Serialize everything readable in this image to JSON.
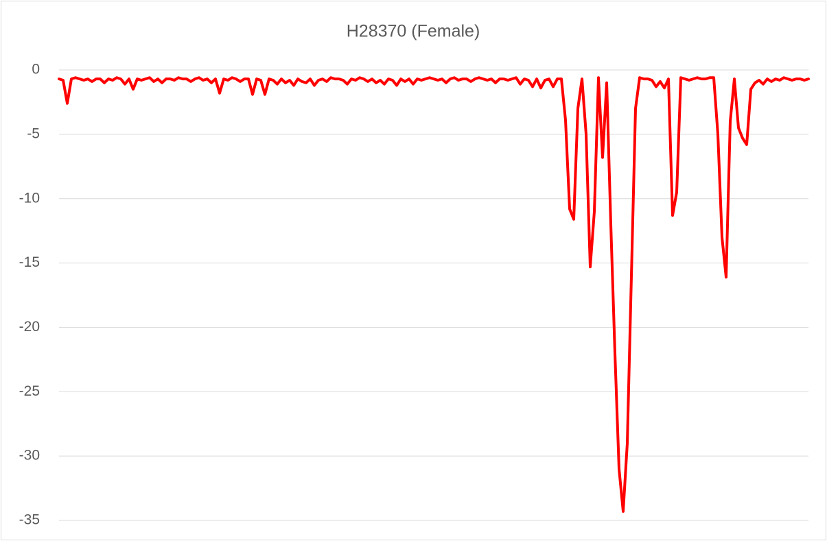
{
  "chart_data": {
    "type": "line",
    "title": "H28370 (Female)",
    "series": [
      {
        "color": "#ff0000",
        "values": [
          -0.7,
          -0.8,
          -2.6,
          -0.7,
          -0.6,
          -0.7,
          -0.8,
          -0.7,
          -0.9,
          -0.7,
          -0.7,
          -1.0,
          -0.7,
          -0.8,
          -0.6,
          -0.7,
          -1.1,
          -0.7,
          -1.5,
          -0.7,
          -0.8,
          -0.7,
          -0.6,
          -0.9,
          -0.7,
          -1.0,
          -0.7,
          -0.7,
          -0.8,
          -0.6,
          -0.7,
          -0.7,
          -0.9,
          -0.7,
          -0.6,
          -0.8,
          -0.7,
          -1.0,
          -0.7,
          -1.8,
          -0.7,
          -0.8,
          -0.6,
          -0.7,
          -0.9,
          -0.7,
          -0.7,
          -1.9,
          -0.7,
          -0.8,
          -1.9,
          -0.7,
          -0.8,
          -1.1,
          -0.7,
          -1.0,
          -0.8,
          -1.2,
          -0.7,
          -0.9,
          -1.0,
          -0.7,
          -1.2,
          -0.8,
          -0.7,
          -0.9,
          -0.6,
          -0.7,
          -0.7,
          -0.8,
          -1.1,
          -0.7,
          -0.8,
          -0.6,
          -0.7,
          -0.9,
          -0.7,
          -1.0,
          -0.8,
          -1.1,
          -0.7,
          -0.8,
          -1.2,
          -0.7,
          -0.9,
          -0.7,
          -1.1,
          -0.7,
          -0.8,
          -0.7,
          -0.6,
          -0.7,
          -0.8,
          -0.7,
          -1.0,
          -0.7,
          -0.6,
          -0.8,
          -0.7,
          -0.7,
          -0.9,
          -0.7,
          -0.6,
          -0.7,
          -0.8,
          -0.7,
          -1.0,
          -0.7,
          -0.7,
          -0.8,
          -0.7,
          -0.6,
          -1.1,
          -0.7,
          -0.8,
          -1.3,
          -0.7,
          -1.4,
          -0.8,
          -0.7,
          -1.3,
          -0.7,
          -0.7,
          -3.9,
          -10.8,
          -11.6,
          -3,
          -0.7,
          -5,
          -15.3,
          -11,
          -0.6,
          -6.8,
          -1,
          -12,
          -22,
          -31,
          -34.3,
          -29,
          -16,
          -3,
          -0.6,
          -0.7,
          -0.7,
          -0.8,
          -1.3,
          -0.9,
          -1.4,
          -0.7,
          -11.3,
          -9.5,
          -0.6,
          -0.7,
          -0.8,
          -0.7,
          -0.6,
          -0.7,
          -0.7,
          -0.6,
          -0.6,
          -5,
          -13,
          -16.1,
          -4,
          -0.7,
          -4.5,
          -5.3,
          -5.8,
          -1.5,
          -1,
          -0.8,
          -1.1,
          -0.7,
          -0.9,
          -0.7,
          -0.8,
          -0.6,
          -0.7,
          -0.8,
          -0.7,
          -0.7,
          -0.8,
          -0.7
        ]
      }
    ],
    "ylim": [
      -35,
      0
    ],
    "yticks": [
      0,
      -5,
      -10,
      -15,
      -20,
      -25,
      -30,
      -35
    ],
    "grid": true
  }
}
